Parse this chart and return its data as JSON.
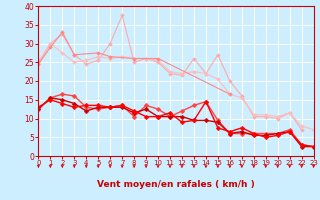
{
  "xlabel": "Vent moyen/en rafales ( km/h )",
  "bg_color": "#cceeff",
  "grid_color": "#ffffff",
  "x_ticks": [
    0,
    1,
    2,
    3,
    4,
    5,
    6,
    7,
    8,
    9,
    10,
    11,
    12,
    13,
    14,
    15,
    16,
    17,
    18,
    19,
    20,
    21,
    22,
    23
  ],
  "ylim": [
    0,
    40
  ],
  "xlim": [
    0,
    23
  ],
  "yticks": [
    0,
    5,
    10,
    15,
    20,
    25,
    30,
    35,
    40
  ],
  "series": [
    {
      "color": "#ffaaaa",
      "linewidth": 0.8,
      "markersize": 2.0,
      "marker": "D",
      "values": [
        24.5,
        30.0,
        32.5,
        27.0,
        24.5,
        25.5,
        30.0,
        37.5,
        25.0,
        26.0,
        25.0,
        22.0,
        21.5,
        26.0,
        22.0,
        27.0,
        20.0,
        16.0,
        10.5,
        10.5,
        10.0,
        11.5,
        7.0,
        null
      ]
    },
    {
      "color": "#ffbbbb",
      "linewidth": 0.8,
      "markersize": 2.0,
      "marker": "D",
      "values": [
        25.0,
        30.0,
        27.5,
        25.0,
        25.5,
        26.5,
        26.0,
        26.5,
        26.0,
        26.0,
        25.5,
        22.5,
        22.0,
        22.5,
        22.0,
        20.5,
        16.5,
        15.5,
        11.0,
        11.0,
        10.5,
        11.5,
        8.0,
        7.0
      ]
    },
    {
      "color": "#ff8888",
      "linewidth": 0.8,
      "markersize": 2.0,
      "marker": "D",
      "values": [
        24.5,
        29.0,
        33.0,
        27.0,
        null,
        27.5,
        26.5,
        null,
        26.0,
        null,
        26.0,
        null,
        null,
        null,
        null,
        null,
        16.5,
        null,
        null,
        null,
        null,
        null,
        null,
        null
      ]
    },
    {
      "color": "#ff4444",
      "linewidth": 1.0,
      "markersize": 2.5,
      "marker": "D",
      "values": [
        12.5,
        15.5,
        16.5,
        16.0,
        13.0,
        12.5,
        13.0,
        13.5,
        10.5,
        13.5,
        12.5,
        10.5,
        12.0,
        13.5,
        14.5,
        9.5,
        6.0,
        6.0,
        6.0,
        6.0,
        6.0,
        7.0,
        3.0,
        2.5
      ]
    },
    {
      "color": "#cc0000",
      "linewidth": 1.0,
      "markersize": 2.5,
      "marker": "D",
      "values": [
        12.5,
        15.5,
        15.0,
        14.0,
        12.0,
        13.0,
        13.0,
        13.0,
        11.5,
        12.5,
        10.5,
        10.5,
        10.5,
        9.5,
        9.5,
        9.0,
        6.0,
        6.5,
        5.5,
        5.5,
        6.0,
        6.5,
        2.5,
        2.5
      ]
    },
    {
      "color": "#ff0000",
      "linewidth": 1.0,
      "markersize": 2.5,
      "marker": "D",
      "values": [
        13.0,
        15.0,
        14.0,
        13.0,
        13.5,
        13.5,
        13.0,
        13.5,
        12.0,
        10.5,
        10.5,
        11.5,
        9.0,
        9.5,
        14.5,
        7.5,
        6.5,
        7.5,
        6.0,
        5.0,
        5.5,
        6.5,
        3.0,
        2.5
      ]
    }
  ],
  "arrow_color": "#dd0000",
  "xlabel_color": "#cc0000",
  "tick_color": "#cc0000",
  "axis_color": "#cc0000",
  "xlabel_fontsize": 6.5,
  "ytick_fontsize": 5.5,
  "xtick_fontsize": 5.0
}
